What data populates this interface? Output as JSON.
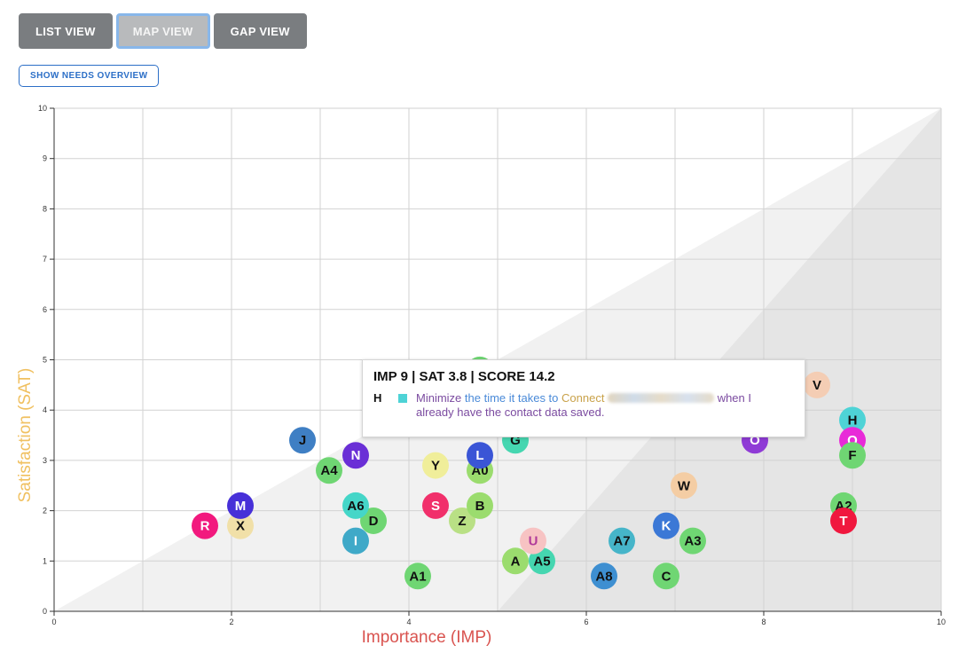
{
  "tabs": [
    {
      "label": "LIST VIEW",
      "active": false
    },
    {
      "label": "MAP VIEW",
      "active": true
    },
    {
      "label": "GAP VIEW",
      "active": false
    }
  ],
  "needs_button": "SHOW NEEDS OVERVIEW",
  "chart_data": {
    "type": "scatter",
    "xlabel": "Importance (IMP)",
    "ylabel": "Satisfaction (SAT)",
    "xlim": [
      0,
      10
    ],
    "ylim": [
      0,
      10
    ],
    "x_ticks": [
      0,
      2,
      4,
      6,
      8,
      10
    ],
    "y_ticks": [
      0,
      1,
      2,
      3,
      4,
      5,
      6,
      7,
      8,
      9,
      10
    ],
    "grid": true,
    "points": [
      {
        "label": "A",
        "imp": 5.2,
        "sat": 1.0,
        "color": "#9bdc6e",
        "text": "#111111"
      },
      {
        "label": "A1",
        "imp": 4.1,
        "sat": 0.7,
        "color": "#6fd673",
        "text": "#111111"
      },
      {
        "label": "A5",
        "imp": 5.5,
        "sat": 1.0,
        "color": "#45d6b0",
        "text": "#111111"
      },
      {
        "label": "U",
        "imp": 5.4,
        "sat": 1.4,
        "color": "#f7c3c3",
        "text": "#b03a9a"
      },
      {
        "label": "A8",
        "imp": 6.2,
        "sat": 0.7,
        "color": "#3e8fd1",
        "text": "#111111"
      },
      {
        "label": "C",
        "imp": 6.9,
        "sat": 0.7,
        "color": "#6fd673",
        "text": "#111111"
      },
      {
        "label": "A7",
        "imp": 6.4,
        "sat": 1.4,
        "color": "#46b5c9",
        "text": "#111111"
      },
      {
        "label": "K",
        "imp": 6.9,
        "sat": 1.7,
        "color": "#3b78d6",
        "text": "#ffffff"
      },
      {
        "label": "A3",
        "imp": 7.2,
        "sat": 1.4,
        "color": "#6fd673",
        "text": "#111111"
      },
      {
        "label": "W",
        "imp": 7.1,
        "sat": 2.5,
        "color": "#f4cda4",
        "text": "#111111"
      },
      {
        "label": "I",
        "imp": 3.4,
        "sat": 1.4,
        "color": "#3fa9c8",
        "text": "#ffffff"
      },
      {
        "label": "D",
        "imp": 3.6,
        "sat": 1.8,
        "color": "#6fd673",
        "text": "#111111"
      },
      {
        "label": "A6",
        "imp": 3.4,
        "sat": 2.1,
        "color": "#45d6c8",
        "text": "#111111"
      },
      {
        "label": "Z",
        "imp": 4.6,
        "sat": 1.8,
        "color": "#b9e085",
        "text": "#111111"
      },
      {
        "label": "S",
        "imp": 4.3,
        "sat": 2.1,
        "color": "#f1306b",
        "text": "#ffffff"
      },
      {
        "label": "B",
        "imp": 4.8,
        "sat": 2.1,
        "color": "#9bdc6e",
        "text": "#111111"
      },
      {
        "label": "R",
        "imp": 1.7,
        "sat": 1.7,
        "color": "#f2197e",
        "text": "#ffffff"
      },
      {
        "label": "X",
        "imp": 2.1,
        "sat": 1.7,
        "color": "#f1e0a8",
        "text": "#111111"
      },
      {
        "label": "M",
        "imp": 2.1,
        "sat": 2.1,
        "color": "#4730d8",
        "text": "#ffffff"
      },
      {
        "label": "A4",
        "imp": 3.1,
        "sat": 2.8,
        "color": "#6fd673",
        "text": "#111111"
      },
      {
        "label": "N",
        "imp": 3.4,
        "sat": 3.1,
        "color": "#6a2fd6",
        "text": "#ffffff"
      },
      {
        "label": "J",
        "imp": 2.8,
        "sat": 3.4,
        "color": "#3f7fc4",
        "text": "#111111"
      },
      {
        "label": "Y",
        "imp": 4.3,
        "sat": 2.9,
        "color": "#f0ee9a",
        "text": "#111111"
      },
      {
        "label": "A0",
        "imp": 4.8,
        "sat": 2.8,
        "color": "#9bdc6e",
        "text": "#111111"
      },
      {
        "label": "L",
        "imp": 4.8,
        "sat": 3.1,
        "color": "#3a55d6",
        "text": "#ffffff"
      },
      {
        "label": "G",
        "imp": 5.2,
        "sat": 3.4,
        "color": "#45d6b0",
        "text": "#111111"
      },
      {
        "label": "O",
        "imp": 7.9,
        "sat": 3.4,
        "color": "#8f3bd6",
        "text": "#ffffff"
      },
      {
        "label": "V",
        "imp": 8.6,
        "sat": 4.5,
        "color": "#f4cdb4",
        "text": "#111111"
      },
      {
        "label": "H",
        "imp": 9.0,
        "sat": 3.8,
        "color": "#4ed3d6",
        "text": "#111111"
      },
      {
        "label": "Q",
        "imp": 9.0,
        "sat": 3.4,
        "color": "#e82ad8",
        "text": "#ffffff"
      },
      {
        "label": "F",
        "imp": 9.0,
        "sat": 3.1,
        "color": "#6fd673",
        "text": "#111111"
      },
      {
        "label": "A2",
        "imp": 8.9,
        "sat": 2.1,
        "color": "#6fd673",
        "text": "#111111"
      },
      {
        "label": "T",
        "imp": 8.9,
        "sat": 1.8,
        "color": "#f0183e",
        "text": "#ffffff"
      },
      {
        "label": "",
        "imp": 4.8,
        "sat": 4.8,
        "color": "#6fd673",
        "text": "#111111"
      }
    ],
    "tooltip": {
      "title": "IMP 9 | SAT 3.8 | SCORE 14.2",
      "letter": "H",
      "swatch": "#4ed3d6",
      "parts": [
        "Minimize ",
        "the time it takes to",
        " Connect",
        " when I already have the contact data saved."
      ]
    }
  }
}
